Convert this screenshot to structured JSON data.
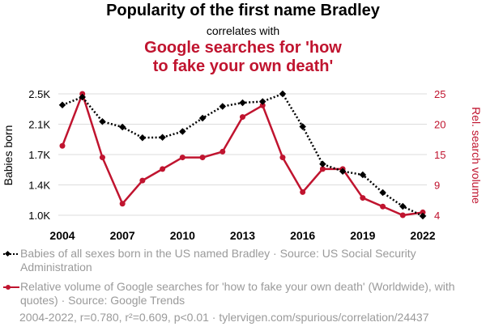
{
  "header": {
    "title": "Popularity of the first name Bradley",
    "subtitle": "correlates with",
    "title2_lines": [
      "Google searches for 'how",
      "to fake your own death'"
    ]
  },
  "legend": {
    "items": [
      {
        "label": "Babies of all sexes born in the US named Bradley · Source: US Social Security Administration"
      },
      {
        "label": "Relative volume of Google searches for 'how to fake your own death' (Worldwide), with quotes) · Source: Google Trends"
      }
    ]
  },
  "footer": {
    "text": "2004-2022, r=0.780, r²=0.609, p<0.01 · tylervigen.com/spurious/correlation/24437"
  },
  "colors": {
    "left_series": "#000000",
    "right_series": "#c0142f",
    "grid": "#dddddd",
    "muted": "#9a9a9a"
  },
  "chart_data": {
    "type": "line",
    "x": [
      2004,
      2005,
      2006,
      2007,
      2008,
      2009,
      2010,
      2011,
      2012,
      2013,
      2014,
      2015,
      2016,
      2017,
      2018,
      2019,
      2020,
      2021,
      2022
    ],
    "xticks": [
      "2004",
      "2007",
      "2010",
      "2013",
      "2016",
      "2019",
      "2022"
    ],
    "y_left": {
      "label": "Babies born",
      "ticks": [
        "1.0K",
        "1.4K",
        "1.7K",
        "2.1K",
        "2.5K"
      ],
      "min": 1000,
      "max": 2500
    },
    "y_right": {
      "label": "Rel. search volume",
      "ticks": [
        "4",
        "9",
        "15",
        "20",
        "25"
      ],
      "min": 4,
      "max": 25
    },
    "series": [
      {
        "name": "Babies of all sexes born in the US named Bradley",
        "axis": "left",
        "style": "dotted-diamond",
        "values": [
          2362,
          2460,
          2158,
          2090,
          1958,
          1962,
          2035,
          2200,
          2345,
          2390,
          2405,
          2500,
          2095,
          1632,
          1543,
          1500,
          1280,
          1110,
          990
        ]
      },
      {
        "name": "Relative volume of Google searches for 'how to fake your own death'",
        "axis": "right",
        "style": "solid-circle",
        "values": [
          16,
          25,
          14,
          6,
          10,
          12,
          14,
          14,
          15,
          21,
          23,
          14,
          8,
          12,
          12,
          7,
          5.5,
          4,
          4.5
        ]
      }
    ]
  }
}
